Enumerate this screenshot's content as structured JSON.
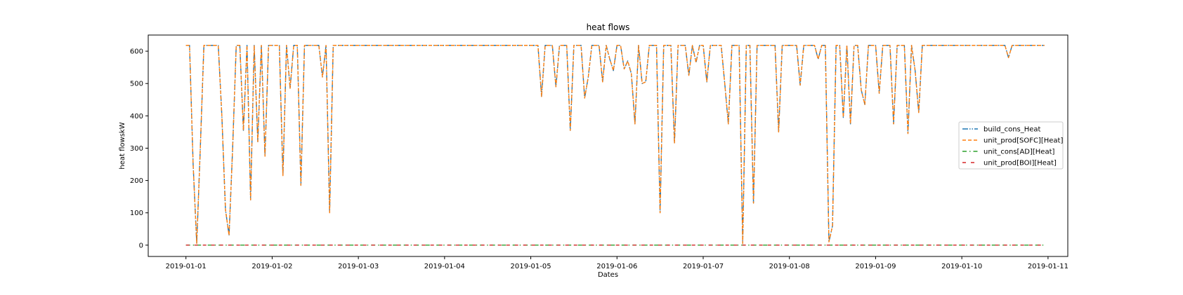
{
  "chart_data": {
    "type": "line",
    "title": "heat flows",
    "xlabel": "Dates",
    "ylabel": "heat flowskW",
    "xlim": [
      "2018-12-31T13:30",
      "2019-01-11T05:30"
    ],
    "ylim": [
      -35,
      650
    ],
    "grid": false,
    "legend_position": "center-right",
    "x_ticks": [
      "2019-01-01",
      "2019-01-02",
      "2019-01-03",
      "2019-01-04",
      "2019-01-05",
      "2019-01-06",
      "2019-01-07",
      "2019-01-08",
      "2019-01-09",
      "2019-01-10",
      "2019-01-11"
    ],
    "y_ticks": [
      0,
      100,
      200,
      300,
      400,
      500,
      600
    ],
    "series": [
      {
        "name": "build_cons_Heat",
        "color": "#1f77b4",
        "dash": "8 2 1.5 2 1.5 2"
      },
      {
        "name": "unit_prod[SOFC][Heat]",
        "color": "#ff7f0e",
        "dash": "5 3"
      },
      {
        "name": "unit_cons[AD][Heat]",
        "color": "#2ca02c",
        "dash": "6 4 1.5 4"
      },
      {
        "name": "unit_prod[BOI][Heat]",
        "color": "#d62728",
        "dash": "5 7"
      }
    ],
    "heat_points": [
      [
        "2019-01-01T00:00",
        618
      ],
      [
        "2019-01-01T01:00",
        618
      ],
      [
        "2019-01-01T02:00",
        250
      ],
      [
        "2019-01-01T03:00",
        5
      ],
      [
        "2019-01-01T04:00",
        300
      ],
      [
        "2019-01-01T05:00",
        618
      ],
      [
        "2019-01-01T08:00",
        618
      ],
      [
        "2019-01-01T09:00",
        618
      ],
      [
        "2019-01-01T10:00",
        400
      ],
      [
        "2019-01-01T11:00",
        110
      ],
      [
        "2019-01-01T12:00",
        30
      ],
      [
        "2019-01-01T13:00",
        300
      ],
      [
        "2019-01-01T14:00",
        618
      ],
      [
        "2019-01-01T15:00",
        618
      ],
      [
        "2019-01-01T16:00",
        355
      ],
      [
        "2019-01-01T17:00",
        618
      ],
      [
        "2019-01-01T18:00",
        140
      ],
      [
        "2019-01-01T19:00",
        618
      ],
      [
        "2019-01-01T20:00",
        320
      ],
      [
        "2019-01-01T21:00",
        618
      ],
      [
        "2019-01-01T22:00",
        275
      ],
      [
        "2019-01-01T23:00",
        618
      ],
      [
        "2019-01-02T00:00",
        618
      ],
      [
        "2019-01-02T01:00",
        618
      ],
      [
        "2019-01-02T02:00",
        618
      ],
      [
        "2019-01-02T03:00",
        215
      ],
      [
        "2019-01-02T04:00",
        618
      ],
      [
        "2019-01-02T05:00",
        485
      ],
      [
        "2019-01-02T06:00",
        618
      ],
      [
        "2019-01-02T07:00",
        618
      ],
      [
        "2019-01-02T08:00",
        185
      ],
      [
        "2019-01-02T09:00",
        618
      ],
      [
        "2019-01-02T10:00",
        618
      ],
      [
        "2019-01-02T11:00",
        618
      ],
      [
        "2019-01-02T12:00",
        618
      ],
      [
        "2019-01-02T13:00",
        618
      ],
      [
        "2019-01-02T14:00",
        520
      ],
      [
        "2019-01-02T15:00",
        618
      ],
      [
        "2019-01-02T16:00",
        100
      ],
      [
        "2019-01-02T17:00",
        618
      ],
      [
        "2019-01-05T00:00",
        618
      ],
      [
        "2019-01-05T01:00",
        618
      ],
      [
        "2019-01-05T02:00",
        618
      ],
      [
        "2019-01-05T03:00",
        460
      ],
      [
        "2019-01-05T04:00",
        618
      ],
      [
        "2019-01-05T05:00",
        618
      ],
      [
        "2019-01-05T06:00",
        618
      ],
      [
        "2019-01-05T07:00",
        490
      ],
      [
        "2019-01-05T08:00",
        618
      ],
      [
        "2019-01-05T09:00",
        618
      ],
      [
        "2019-01-05T10:00",
        618
      ],
      [
        "2019-01-05T11:00",
        355
      ],
      [
        "2019-01-05T12:00",
        618
      ],
      [
        "2019-01-05T13:00",
        618
      ],
      [
        "2019-01-05T14:00",
        618
      ],
      [
        "2019-01-05T15:00",
        455
      ],
      [
        "2019-01-05T16:00",
        520
      ],
      [
        "2019-01-05T17:00",
        618
      ],
      [
        "2019-01-05T18:00",
        618
      ],
      [
        "2019-01-05T19:00",
        618
      ],
      [
        "2019-01-05T20:00",
        505
      ],
      [
        "2019-01-05T21:00",
        618
      ],
      [
        "2019-01-05T22:00",
        575
      ],
      [
        "2019-01-05T23:00",
        540
      ],
      [
        "2019-01-06T00:00",
        618
      ],
      [
        "2019-01-06T01:00",
        618
      ],
      [
        "2019-01-06T02:00",
        545
      ],
      [
        "2019-01-06T03:00",
        570
      ],
      [
        "2019-01-06T04:00",
        530
      ],
      [
        "2019-01-06T05:00",
        375
      ],
      [
        "2019-01-06T06:00",
        618
      ],
      [
        "2019-01-06T07:00",
        500
      ],
      [
        "2019-01-06T08:00",
        505
      ],
      [
        "2019-01-06T09:00",
        618
      ],
      [
        "2019-01-06T10:00",
        618
      ],
      [
        "2019-01-06T11:00",
        618
      ],
      [
        "2019-01-06T12:00",
        100
      ],
      [
        "2019-01-06T13:00",
        618
      ],
      [
        "2019-01-06T14:00",
        618
      ],
      [
        "2019-01-06T15:00",
        618
      ],
      [
        "2019-01-06T16:00",
        315
      ],
      [
        "2019-01-06T17:00",
        618
      ],
      [
        "2019-01-06T18:00",
        618
      ],
      [
        "2019-01-06T19:00",
        618
      ],
      [
        "2019-01-06T20:00",
        525
      ],
      [
        "2019-01-06T21:00",
        618
      ],
      [
        "2019-01-06T22:00",
        565
      ],
      [
        "2019-01-06T23:00",
        618
      ],
      [
        "2019-01-07T00:00",
        618
      ],
      [
        "2019-01-07T01:00",
        505
      ],
      [
        "2019-01-07T02:00",
        618
      ],
      [
        "2019-01-07T03:00",
        618
      ],
      [
        "2019-01-07T04:00",
        618
      ],
      [
        "2019-01-07T05:00",
        618
      ],
      [
        "2019-01-07T06:00",
        500
      ],
      [
        "2019-01-07T07:00",
        375
      ],
      [
        "2019-01-07T08:00",
        618
      ],
      [
        "2019-01-07T09:00",
        618
      ],
      [
        "2019-01-07T10:00",
        618
      ],
      [
        "2019-01-07T11:00",
        5
      ],
      [
        "2019-01-07T12:00",
        618
      ],
      [
        "2019-01-07T13:00",
        618
      ],
      [
        "2019-01-07T14:00",
        130
      ],
      [
        "2019-01-07T15:00",
        618
      ],
      [
        "2019-01-07T16:00",
        618
      ],
      [
        "2019-01-07T17:00",
        618
      ],
      [
        "2019-01-07T18:00",
        618
      ],
      [
        "2019-01-07T19:00",
        618
      ],
      [
        "2019-01-07T20:00",
        618
      ],
      [
        "2019-01-07T21:00",
        350
      ],
      [
        "2019-01-07T22:00",
        618
      ],
      [
        "2019-01-07T23:00",
        618
      ],
      [
        "2019-01-08T00:00",
        618
      ],
      [
        "2019-01-08T01:00",
        618
      ],
      [
        "2019-01-08T02:00",
        618
      ],
      [
        "2019-01-08T03:00",
        495
      ],
      [
        "2019-01-08T04:00",
        618
      ],
      [
        "2019-01-08T05:00",
        618
      ],
      [
        "2019-01-08T06:00",
        618
      ],
      [
        "2019-01-08T07:00",
        618
      ],
      [
        "2019-01-08T08:00",
        575
      ],
      [
        "2019-01-08T09:00",
        618
      ],
      [
        "2019-01-08T10:00",
        618
      ],
      [
        "2019-01-08T11:00",
        10
      ],
      [
        "2019-01-08T12:00",
        60
      ],
      [
        "2019-01-08T13:00",
        618
      ],
      [
        "2019-01-08T14:00",
        618
      ],
      [
        "2019-01-08T15:00",
        395
      ],
      [
        "2019-01-08T16:00",
        618
      ],
      [
        "2019-01-08T17:00",
        375
      ],
      [
        "2019-01-08T18:00",
        618
      ],
      [
        "2019-01-08T19:00",
        618
      ],
      [
        "2019-01-08T20:00",
        480
      ],
      [
        "2019-01-08T21:00",
        435
      ],
      [
        "2019-01-08T22:00",
        618
      ],
      [
        "2019-01-08T23:00",
        618
      ],
      [
        "2019-01-09T00:00",
        618
      ],
      [
        "2019-01-09T01:00",
        470
      ],
      [
        "2019-01-09T02:00",
        618
      ],
      [
        "2019-01-09T03:00",
        618
      ],
      [
        "2019-01-09T04:00",
        618
      ],
      [
        "2019-01-09T05:00",
        375
      ],
      [
        "2019-01-09T06:00",
        618
      ],
      [
        "2019-01-09T07:00",
        618
      ],
      [
        "2019-01-09T08:00",
        618
      ],
      [
        "2019-01-09T09:00",
        345
      ],
      [
        "2019-01-09T10:00",
        618
      ],
      [
        "2019-01-09T11:00",
        540
      ],
      [
        "2019-01-09T12:00",
        410
      ],
      [
        "2019-01-09T13:00",
        618
      ],
      [
        "2019-01-09T14:00",
        618
      ],
      [
        "2019-01-10T12:00",
        618
      ],
      [
        "2019-01-10T13:00",
        580
      ],
      [
        "2019-01-10T14:00",
        618
      ],
      [
        "2019-01-10T15:00",
        618
      ],
      [
        "2019-01-10T23:00",
        618
      ]
    ],
    "zero_series_x_range": [
      "2019-01-01T00:00",
      "2019-01-10T23:00"
    ],
    "zero_series_value": 0
  }
}
